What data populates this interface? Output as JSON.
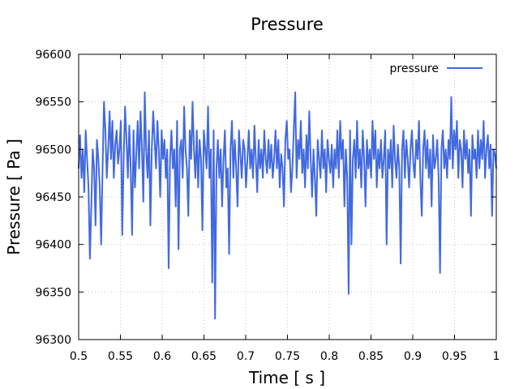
{
  "chart_data": {
    "type": "line",
    "title": "Pressure",
    "xlabel": "Time [ s ]",
    "ylabel": "Pressure [ Pa ]",
    "xlim": [
      0.5,
      1.0
    ],
    "ylim": [
      96300,
      96600
    ],
    "xticks": [
      "0.5",
      "0.55",
      "0.6",
      "0.65",
      "0.7",
      "0.75",
      "0.8",
      "0.85",
      "0.9",
      "0.95",
      "1"
    ],
    "yticks": [
      "96300",
      "96350",
      "96400",
      "96450",
      "96500",
      "96550",
      "96600"
    ],
    "grid": true,
    "legend": "top-right",
    "series": [
      {
        "name": "pressure",
        "color": "#4169e1",
        "x_start": 0.5,
        "x_end": 1.0,
        "values": [
          96480,
          96515,
          96470,
          96500,
          96455,
          96520,
          96490,
          96460,
          96385,
          96440,
          96500,
          96480,
          96420,
          96510,
          96490,
          96460,
          96400,
          96480,
          96550,
          96520,
          96470,
          96500,
          96540,
          96490,
          96530,
          96470,
          96505,
          96520,
          96485,
          96500,
          96530,
          96410,
          96490,
          96545,
          96510,
          96470,
          96525,
          96480,
          96410,
          96520,
          96460,
          96495,
          96530,
          96480,
          96540,
          96500,
          96445,
          96560,
          96500,
          96470,
          96520,
          96420,
          96500,
          96540,
          96510,
          96480,
          96530,
          96500,
          96450,
          96520,
          96490,
          96510,
          96470,
          96500,
          96375,
          96490,
          96520,
          96480,
          96500,
          96440,
          96530,
          96395,
          96500,
          96510,
          96470,
          96545,
          96500,
          96480,
          96430,
          96520,
          96490,
          96550,
          96500,
          96470,
          96520,
          96460,
          96510,
          96490,
          96415,
          96520,
          96500,
          96480,
          96545,
          96470,
          96500,
          96360,
          96520,
          96322,
          96480,
          96510,
          96470,
          96500,
          96440,
          96490,
          96520,
          96460,
          96480,
          96390,
          96500,
          96530,
          96470,
          96510,
          96480,
          96440,
          96520,
          96495,
          96470,
          96510,
          96500,
          96460,
          96490,
          96520,
          96480,
          96500,
          96470,
          96525,
          96490,
          96455,
          96510,
          96480,
          96500,
          96470,
          96520,
          96490,
          96475,
          96510,
          96480,
          96505,
          96470,
          96490,
          96520,
          96480,
          96510,
          96460,
          96495,
          96480,
          96440,
          96510,
          96530,
          96490,
          96500,
          96455,
          96480,
          96520,
          96560,
          96470,
          96510,
          96490,
          96530,
          96475,
          96500,
          96460,
          96515,
          96480,
          96540,
          96490,
          96450,
          96500,
          96470,
          96430,
          96510,
          96490,
          96470,
          96520,
          96480,
          96500,
          96455,
          96510,
          96490,
          96475,
          96505,
          96460,
          96500,
          96480,
          96520,
          96470,
          96530,
          96490,
          96510,
          96440,
          96500,
          96470,
          96348,
          96520,
          96400,
          96490,
          96510,
          96470,
          96530,
          96480,
          96500,
          96460,
          96520,
          96490,
          96440,
          96510,
          96480,
          96500,
          96470,
          96530,
          96490,
          96520,
          96460,
          96500,
          96480,
          96510,
          96470,
          96490,
          96520,
          96400,
          96500,
          96480,
          96510,
          96460,
          96525,
          96490,
          96470,
          96505,
          96480,
          96380,
          96500,
          96520,
          96470,
          96510,
          96490,
          96460,
          96500,
          96520,
          96485,
          96470,
          96510,
          96490,
          96530,
          96470,
          96430,
          96500,
          96520,
          96480,
          96510,
          96470,
          96500,
          96440,
          96515,
          96480,
          96490,
          96510,
          96470,
          96370,
          96500,
          96520,
          96480,
          96500,
          96470,
          96510,
          96490,
          96555,
          96480,
          96520,
          96500,
          96530,
          96470,
          96510,
          96500,
          96460,
          96520,
          96490,
          96510,
          96475,
          96500,
          96430,
          96515,
          96490,
          96500,
          96470,
          96520,
          96480,
          96510,
          96490,
          96530,
          96470,
          96500,
          96515,
          96480,
          96505,
          96430,
          96500,
          96495,
          96480
        ]
      }
    ]
  }
}
